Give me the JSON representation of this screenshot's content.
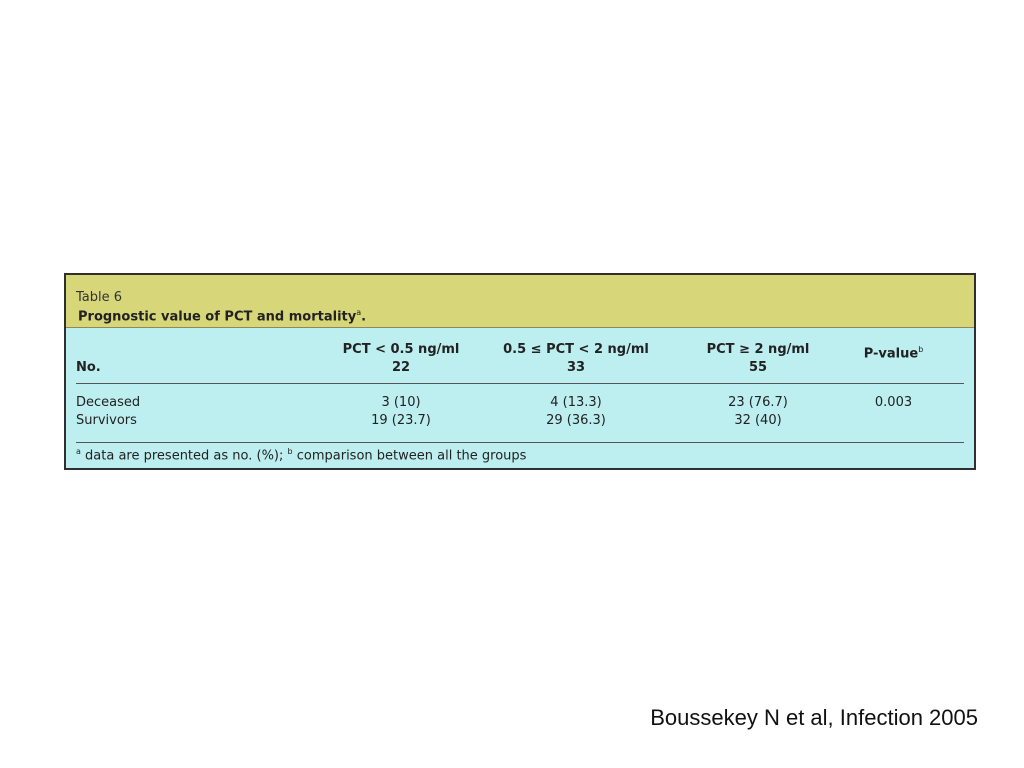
{
  "table": {
    "label": "Table 6",
    "title": "Prognostic value of PCT and mortality",
    "title_sup": "a",
    "title_end": ".",
    "headers": {
      "row_label": "No.",
      "columns": [
        {
          "label": "PCT < 0.5 ng/ml",
          "count": "22"
        },
        {
          "label": "0.5 ≤ PCT < 2 ng/ml",
          "count": "33"
        },
        {
          "label": "PCT ≥ 2 ng/ml",
          "count": "55"
        },
        {
          "label": "P-value",
          "sup": "b",
          "count": ""
        }
      ]
    },
    "rows": [
      {
        "label": "Deceased",
        "cells": [
          "3 (10)",
          "4 (13.3)",
          "23 (76.7)",
          "0.003"
        ]
      },
      {
        "label": "Survivors",
        "cells": [
          "19 (23.7)",
          "29 (36.3)",
          "32 (40)",
          ""
        ]
      }
    ],
    "footnote": {
      "a_mark": "a",
      "a_text": " data are presented as no. (%); ",
      "b_mark": "b",
      "b_text": " comparison between all the groups"
    },
    "colors": {
      "header_bg": "#d7d77a",
      "body_bg": "#bdeef0",
      "border": "#2f2f2f"
    }
  },
  "citation": "Boussekey N et al, Infection 2005"
}
